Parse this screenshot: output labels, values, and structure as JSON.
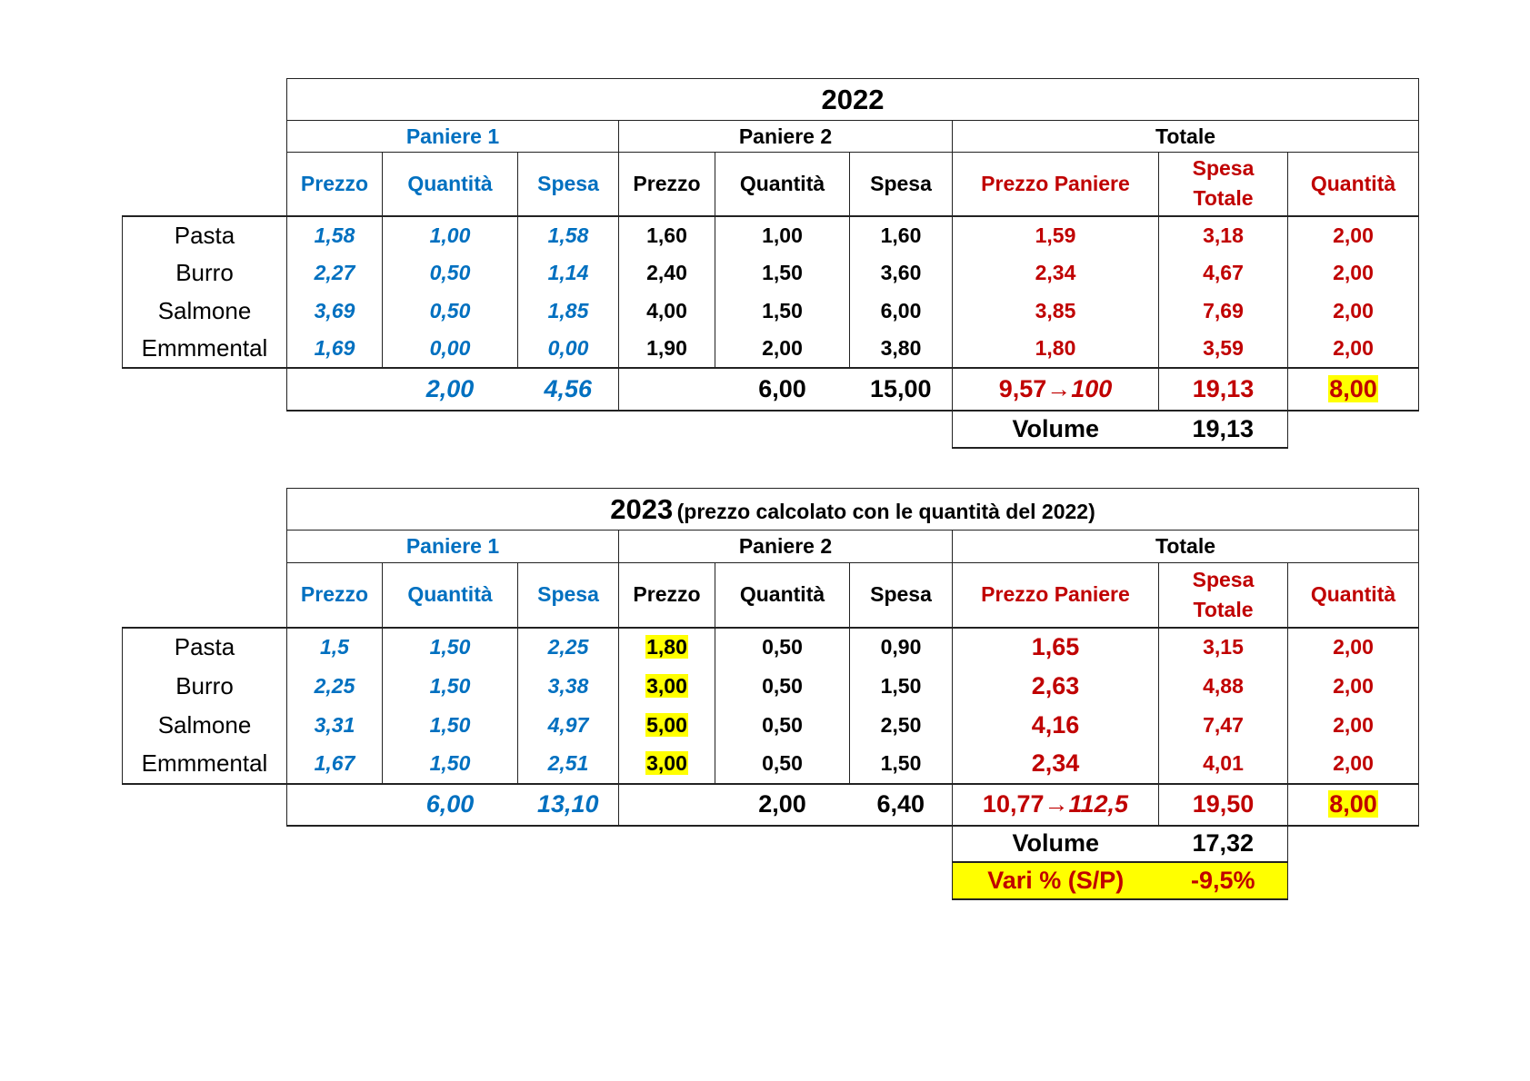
{
  "colors": {
    "blue": "#0070c0",
    "red": "#c00000",
    "highlight": "#ffff00"
  },
  "tables": [
    {
      "title": "2022",
      "subtitle": "",
      "groups": [
        "Paniere 1",
        "Paniere 2",
        "Totale"
      ],
      "headers": [
        "Prezzo",
        "Quantità",
        "Spesa",
        "Prezzo",
        "Quantità",
        "Spesa",
        "Prezzo Paniere",
        "Spesa Totale",
        "Quantità"
      ],
      "rows": [
        {
          "label": "Pasta",
          "values": [
            "1,58",
            "1,00",
            "1,58",
            "1,60",
            "1,00",
            "1,60",
            "1,59",
            "3,18",
            "2,00"
          ]
        },
        {
          "label": "Burro",
          "values": [
            "2,27",
            "0,50",
            "1,14",
            "2,40",
            "1,50",
            "3,60",
            "2,34",
            "4,67",
            "2,00"
          ]
        },
        {
          "label": "Salmone",
          "values": [
            "3,69",
            "0,50",
            "1,85",
            "4,00",
            "1,50",
            "6,00",
            "3,85",
            "7,69",
            "2,00"
          ]
        },
        {
          "label": "Emmmental",
          "values": [
            "1,69",
            "0,00",
            "0,00",
            "1,90",
            "2,00",
            "3,80",
            "1,80",
            "3,59",
            "2,00"
          ]
        }
      ],
      "totals": {
        "values": [
          "",
          "2,00",
          "4,56",
          "",
          "6,00",
          "15,00",
          "",
          "19,13",
          "8,00"
        ],
        "index_price": "9,57",
        "arrow": "→",
        "index_value": "100"
      },
      "volume": {
        "label": "Volume",
        "value": "19,13"
      }
    },
    {
      "title": "2023",
      "subtitle": "(prezzo calcolato con le quantità del 2022)",
      "groups": [
        "Paniere 1",
        "Paniere 2",
        "Totale"
      ],
      "headers": [
        "Prezzo",
        "Quantità",
        "Spesa",
        "Prezzo",
        "Quantità",
        "Spesa",
        "Prezzo Paniere",
        "Spesa Totale",
        "Quantità"
      ],
      "rows": [
        {
          "label": "Pasta",
          "values": [
            "1,5",
            "1,50",
            "2,25",
            "1,80",
            "0,50",
            "0,90",
            "1,65",
            "3,15",
            "2,00"
          ]
        },
        {
          "label": "Burro",
          "values": [
            "2,25",
            "1,50",
            "3,38",
            "3,00",
            "0,50",
            "1,50",
            "2,63",
            "4,88",
            "2,00"
          ]
        },
        {
          "label": "Salmone",
          "values": [
            "3,31",
            "1,50",
            "4,97",
            "5,00",
            "0,50",
            "2,50",
            "4,16",
            "7,47",
            "2,00"
          ]
        },
        {
          "label": "Emmmental",
          "values": [
            "1,67",
            "1,50",
            "2,51",
            "3,00",
            "0,50",
            "1,50",
            "2,34",
            "4,01",
            "2,00"
          ]
        }
      ],
      "totals": {
        "values": [
          "",
          "6,00",
          "13,10",
          "",
          "2,00",
          "6,40",
          "",
          "19,50",
          "8,00"
        ],
        "index_price": "10,77",
        "arrow": "→",
        "index_value": "112,5"
      },
      "volume": {
        "label": "Volume",
        "value": "17,32"
      },
      "variation": {
        "label": "Vari % (S/P)",
        "value": "-9,5%"
      }
    }
  ]
}
